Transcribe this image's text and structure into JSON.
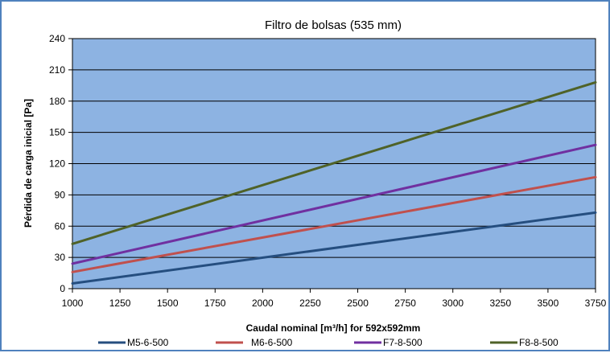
{
  "chart_data": {
    "type": "line",
    "title": "Filtro de bolsas (535 mm)",
    "xlabel": "Caudal nominal [m³/h] for 592x592mm",
    "ylabel": "Pérdida de carga inicial [Pa]",
    "xlim": [
      1000,
      3750
    ],
    "ylim": [
      0,
      240
    ],
    "x_ticks": [
      "1000",
      "1250",
      "1500",
      "1750",
      "2000",
      "2250",
      "2500",
      "2750",
      "3000",
      "3250",
      "3500",
      "3750"
    ],
    "y_ticks": [
      "0",
      "30",
      "60",
      "90",
      "120",
      "150",
      "180",
      "210",
      "240"
    ],
    "grid": "horizontal",
    "plot_background": "#8db3e2",
    "legend_position": "bottom",
    "series": [
      {
        "name": "M5-6-500",
        "color": "#254e7f",
        "x": [
          1000,
          3750
        ],
        "y": [
          5,
          73
        ]
      },
      {
        "name": "M6-6-500",
        "color": "#c0504d",
        "x": [
          1000,
          3750
        ],
        "y": [
          16,
          107
        ]
      },
      {
        "name": "F7-8-500",
        "color": "#7030a0",
        "x": [
          1000,
          3750
        ],
        "y": [
          24,
          138
        ]
      },
      {
        "name": "F8-8-500",
        "color": "#4f6228",
        "x": [
          1000,
          3750
        ],
        "y": [
          43,
          198
        ]
      }
    ]
  }
}
